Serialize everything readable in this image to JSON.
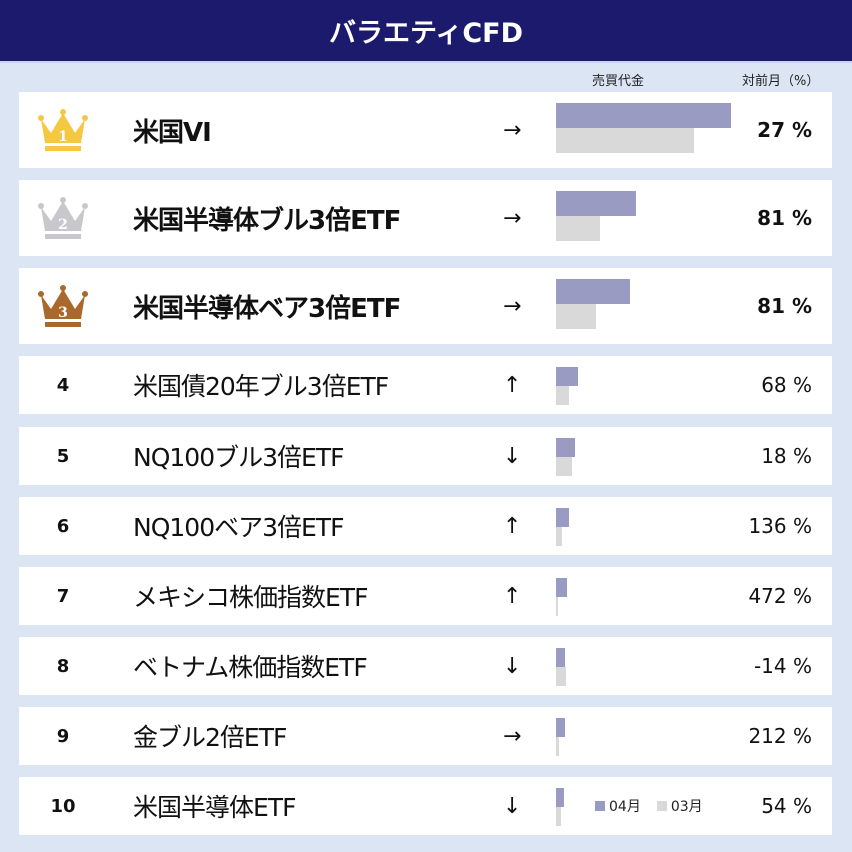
{
  "title": "バラエティCFD",
  "columns": {
    "trading_value": "売買代金",
    "mom": "対前月（%）"
  },
  "legend": {
    "current": "04月",
    "previous": "03月"
  },
  "colors": {
    "header": "#1b1a6d",
    "current_bar": "#9a9bc2",
    "previous_bar": "#d9d9d9",
    "gold": "#f5c842",
    "silver": "#c8c8cc",
    "bronze": "#a8692c"
  },
  "bar_scale_max": 175,
  "rows": [
    {
      "rank": "1",
      "name": "米国VI",
      "arrow": "→",
      "pct": "27 %",
      "current": 175,
      "previous": 138,
      "crown": "gold"
    },
    {
      "rank": "2",
      "name": "米国半導体ブル3倍ETF",
      "arrow": "→",
      "pct": "81 %",
      "current": 80,
      "previous": 44,
      "crown": "silver"
    },
    {
      "rank": "3",
      "name": "米国半導体ベア3倍ETF",
      "arrow": "→",
      "pct": "81 %",
      "current": 74,
      "previous": 40,
      "crown": "bronze"
    },
    {
      "rank": "4",
      "name": "米国債20年ブル3倍ETF",
      "arrow": "↑",
      "pct": "68 %",
      "current": 22,
      "previous": 13
    },
    {
      "rank": "5",
      "name": "NQ100ブル3倍ETF",
      "arrow": "↓",
      "pct": "18 %",
      "current": 19,
      "previous": 16
    },
    {
      "rank": "6",
      "name": "NQ100ベア3倍ETF",
      "arrow": "↑",
      "pct": "136 %",
      "current": 13,
      "previous": 6
    },
    {
      "rank": "7",
      "name": "メキシコ株価指数ETF",
      "arrow": "↑",
      "pct": "472 %",
      "current": 11,
      "previous": 2
    },
    {
      "rank": "8",
      "name": "ベトナム株価指数ETF",
      "arrow": "↓",
      "pct": "-14 %",
      "current": 9,
      "previous": 10
    },
    {
      "rank": "9",
      "name": "金ブル2倍ETF",
      "arrow": "→",
      "pct": "212 %",
      "current": 9,
      "previous": 3
    },
    {
      "rank": "10",
      "name": "米国半導体ETF",
      "arrow": "↓",
      "pct": "54 %",
      "current": 8,
      "previous": 5
    }
  ]
}
